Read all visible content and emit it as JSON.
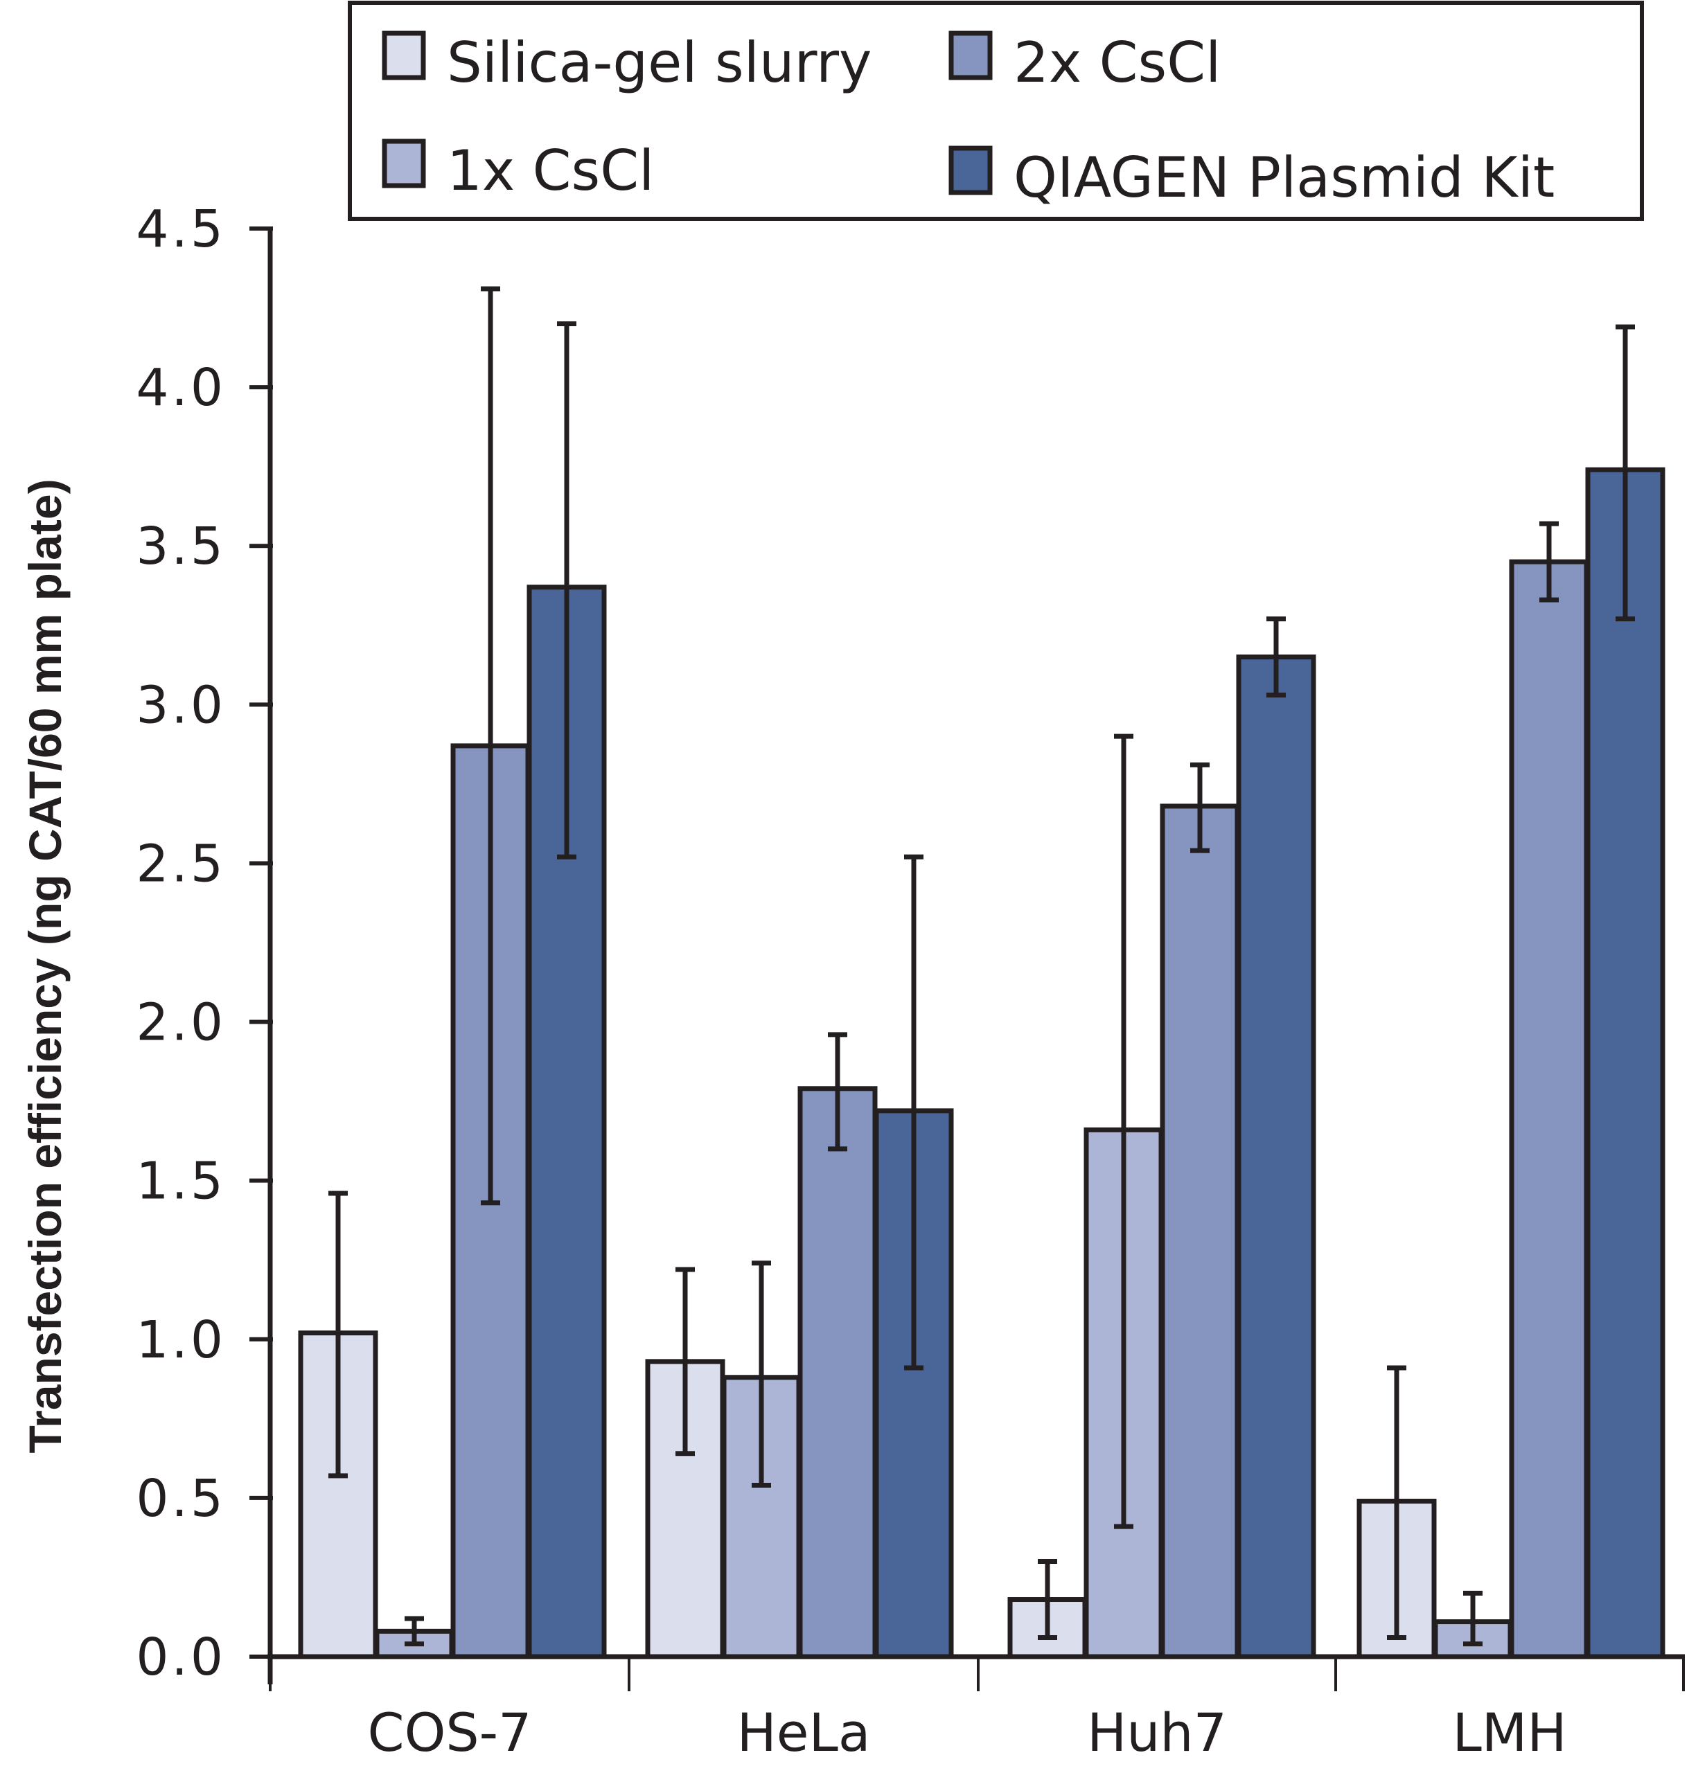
{
  "chart_data": {
    "type": "bar",
    "title": "",
    "xlabel": "",
    "ylabel": "Transfection efficiency (ng CAT/60 mm plate)",
    "ylim": [
      0,
      4.5
    ],
    "yticks": [
      "0.0",
      "0.5",
      "1.0",
      "1.5",
      "2.0",
      "2.5",
      "3.0",
      "3.5",
      "4.0",
      "4.5"
    ],
    "ytick_values": [
      0,
      0.5,
      1.0,
      1.5,
      2.0,
      2.5,
      3.0,
      3.5,
      4.0,
      4.5
    ],
    "grid": false,
    "legend_position": "top",
    "categories": [
      "COS-7",
      "HeLa",
      "Huh7",
      "LMH"
    ],
    "series": [
      {
        "name": "Silica-gel slurry",
        "color": "#dbdeed",
        "values": [
          1.02,
          0.93,
          0.18,
          0.49
        ],
        "error_low": [
          0.57,
          0.64,
          0.06,
          0.06
        ],
        "error_high": [
          1.46,
          1.22,
          0.3,
          0.91
        ]
      },
      {
        "name": "1x CsCl",
        "color": "#adb5d6",
        "values": [
          0.08,
          0.88,
          1.66,
          0.11
        ],
        "error_low": [
          0.04,
          0.54,
          0.41,
          0.04
        ],
        "error_high": [
          0.12,
          1.24,
          2.9,
          0.2
        ]
      },
      {
        "name": "2x CsCl",
        "color": "#8595bf",
        "values": [
          2.87,
          1.79,
          2.68,
          3.45
        ],
        "error_low": [
          1.43,
          1.6,
          2.54,
          3.33
        ],
        "error_high": [
          4.31,
          1.96,
          2.81,
          3.57
        ]
      },
      {
        "name": "QIAGEN Plasmid Kit",
        "color": "#4a6699",
        "values": [
          3.37,
          1.72,
          3.15,
          3.74
        ],
        "error_low": [
          2.52,
          0.91,
          3.03,
          3.27
        ],
        "error_high": [
          4.2,
          2.52,
          3.27,
          4.19
        ]
      }
    ],
    "legend": [
      {
        "label": "Silica-gel slurry",
        "series": 0
      },
      {
        "label": "2x CsCl",
        "series": 2
      },
      {
        "label": "1x CsCl",
        "series": 1
      },
      {
        "label": "QIAGEN Plasmid Kit",
        "series": 3
      }
    ],
    "axis_color": "#231f20"
  }
}
